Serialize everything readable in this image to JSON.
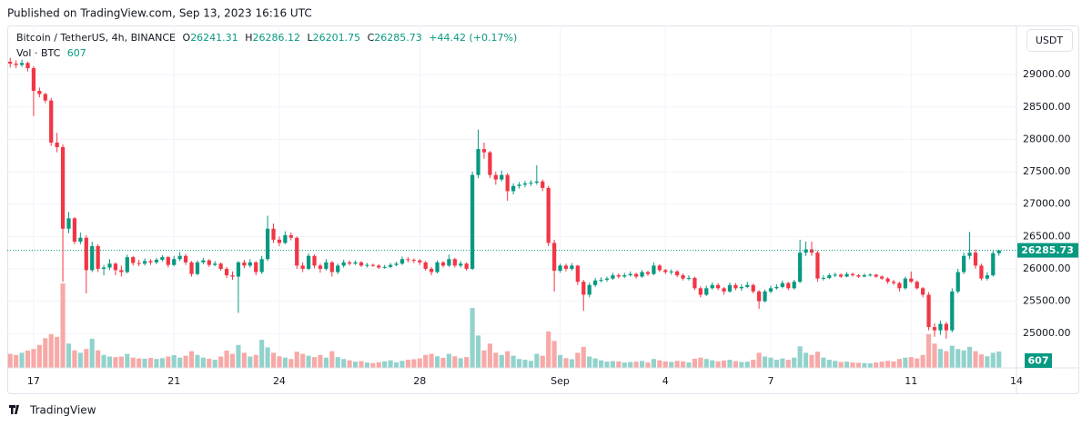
{
  "published": "Published on TradingView.com, Sep 13, 2023 16:16 UTC",
  "footer": "TradingView",
  "chart_data": {
    "type": "candlestick",
    "symbol": "Bitcoin / TetherUS, 4h, BINANCE",
    "ohlc_labels": [
      "O",
      "H",
      "L",
      "C"
    ],
    "change": "+44.42 (+0.17%)",
    "volume_label": "Vol · BTC",
    "currency": "USDT",
    "up_color": "#089981",
    "down_color": "#f23645",
    "volume_up_color": "#92d2cc",
    "volume_down_color": "#f7a9a7",
    "grid": true,
    "xlim": [
      -0.5,
      172
    ],
    "xticks": [
      {
        "value": 4,
        "label": "17"
      },
      {
        "value": 28,
        "label": "21"
      },
      {
        "value": 46,
        "label": "24"
      },
      {
        "value": 70,
        "label": "28"
      },
      {
        "value": 94,
        "label": "Sep"
      },
      {
        "value": 112,
        "label": "4"
      },
      {
        "value": 130,
        "label": "7"
      },
      {
        "value": 154,
        "label": "11"
      },
      {
        "value": 172,
        "label": "14"
      }
    ],
    "ylim": [
      24470,
      29760
    ],
    "yticks": [
      {
        "value": 25000,
        "label": "25000.00"
      },
      {
        "value": 25500,
        "label": "25500.00"
      },
      {
        "value": 26000,
        "label": "26000.00"
      },
      {
        "value": 26500,
        "label": "26500.00"
      },
      {
        "value": 27000,
        "label": "27000.00"
      },
      {
        "value": 27500,
        "label": "27500.00"
      },
      {
        "value": 28000,
        "label": "28000.00"
      },
      {
        "value": 28500,
        "label": "28500.00"
      },
      {
        "value": 29000,
        "label": "29000.00"
      }
    ],
    "y2lim": [
      0,
      12700
    ],
    "x": [
      0,
      1,
      2,
      3,
      4,
      5,
      6,
      7,
      8,
      9,
      10,
      11,
      12,
      13,
      14,
      15,
      16,
      17,
      18,
      19,
      20,
      21,
      22,
      23,
      24,
      25,
      26,
      27,
      28,
      29,
      30,
      31,
      32,
      33,
      34,
      35,
      36,
      37,
      38,
      39,
      40,
      41,
      42,
      43,
      44,
      45,
      46,
      47,
      48,
      49,
      50,
      51,
      52,
      53,
      54,
      55,
      56,
      57,
      58,
      59,
      60,
      61,
      62,
      63,
      64,
      65,
      66,
      67,
      68,
      69,
      70,
      71,
      72,
      73,
      74,
      75,
      76,
      77,
      78,
      79,
      80,
      81,
      82,
      83,
      84,
      85,
      86,
      87,
      88,
      89,
      90,
      91,
      92,
      93,
      94,
      95,
      96,
      97,
      98,
      99,
      100,
      101,
      102,
      103,
      104,
      105,
      106,
      107,
      108,
      109,
      110,
      111,
      112,
      113,
      114,
      115,
      116,
      117,
      118,
      119,
      120,
      121,
      122,
      123,
      124,
      125,
      126,
      127,
      128,
      129,
      130,
      131,
      132,
      133,
      134,
      135,
      136,
      137,
      138,
      139,
      140,
      141,
      142,
      143,
      144,
      145,
      146,
      147,
      148,
      149,
      150,
      151,
      152,
      153,
      154,
      155,
      156,
      157,
      158,
      159,
      160,
      161,
      162,
      163,
      164,
      165,
      166,
      167,
      168,
      169
    ],
    "ohlc": [
      [
        29200,
        29260,
        29110,
        29170
      ],
      [
        29170,
        29220,
        29100,
        29150
      ],
      [
        29150,
        29230,
        29120,
        29180
      ],
      [
        29180,
        29200,
        29050,
        29100
      ],
      [
        29100,
        29130,
        28360,
        28750
      ],
      [
        28750,
        28800,
        28650,
        28700
      ],
      [
        28700,
        28720,
        28560,
        28600
      ],
      [
        28600,
        28640,
        27900,
        27950
      ],
      [
        27950,
        28100,
        27800,
        27880
      ],
      [
        27880,
        27920,
        25800,
        26620
      ],
      [
        26620,
        26880,
        26550,
        26780
      ],
      [
        26780,
        26800,
        26380,
        26420
      ],
      [
        26420,
        26560,
        26380,
        26480
      ],
      [
        26480,
        26520,
        25620,
        25980
      ],
      [
        25980,
        26420,
        25950,
        26350
      ],
      [
        26350,
        26380,
        25950,
        26000
      ],
      [
        26000,
        26060,
        25900,
        26020
      ],
      [
        26020,
        26150,
        25980,
        26080
      ],
      [
        26080,
        26100,
        25900,
        25980
      ],
      [
        25980,
        26050,
        25880,
        25950
      ],
      [
        25950,
        26220,
        25930,
        26180
      ],
      [
        26180,
        26200,
        26050,
        26090
      ],
      [
        26090,
        26140,
        26040,
        26080
      ],
      [
        26080,
        26160,
        26050,
        26120
      ],
      [
        26120,
        26150,
        26060,
        26100
      ],
      [
        26100,
        26170,
        26070,
        26140
      ],
      [
        26140,
        26210,
        26110,
        26180
      ],
      [
        26180,
        26200,
        26020,
        26060
      ],
      [
        26060,
        26200,
        26040,
        26150
      ],
      [
        26150,
        26260,
        26120,
        26200
      ],
      [
        26200,
        26230,
        26060,
        26100
      ],
      [
        26100,
        26120,
        25880,
        25920
      ],
      [
        25920,
        26130,
        25900,
        26100
      ],
      [
        26100,
        26170,
        26070,
        26130
      ],
      [
        26130,
        26150,
        26030,
        26060
      ],
      [
        26060,
        26120,
        26040,
        26080
      ],
      [
        26080,
        26100,
        25970,
        26000
      ],
      [
        26000,
        26030,
        25860,
        25900
      ],
      [
        25900,
        25960,
        25830,
        25880
      ],
      [
        25880,
        26120,
        25320,
        26100
      ],
      [
        26100,
        26140,
        26010,
        26050
      ],
      [
        26050,
        26150,
        26020,
        26100
      ],
      [
        26100,
        26120,
        25900,
        25950
      ],
      [
        25950,
        26200,
        25920,
        26150
      ],
      [
        26150,
        26820,
        26120,
        26620
      ],
      [
        26620,
        26700,
        26400,
        26450
      ],
      [
        26450,
        26500,
        26350,
        26400
      ],
      [
        26400,
        26580,
        26380,
        26520
      ],
      [
        26520,
        26560,
        26440,
        26480
      ],
      [
        26480,
        26500,
        26000,
        26050
      ],
      [
        26050,
        26100,
        25950,
        26000
      ],
      [
        26000,
        26240,
        25980,
        26200
      ],
      [
        26200,
        26220,
        26010,
        26050
      ],
      [
        26050,
        26080,
        25940,
        26000
      ],
      [
        26000,
        26150,
        25970,
        26100
      ],
      [
        26100,
        26120,
        25880,
        25950
      ],
      [
        25950,
        26080,
        25920,
        26050
      ],
      [
        26050,
        26140,
        26020,
        26100
      ],
      [
        26100,
        26130,
        26050,
        26080
      ],
      [
        26080,
        26130,
        26060,
        26100
      ],
      [
        26100,
        26120,
        26030,
        26050
      ],
      [
        26050,
        26090,
        26020,
        26060
      ],
      [
        26060,
        26080,
        26030,
        26050
      ],
      [
        26050,
        26070,
        26000,
        26020
      ],
      [
        26020,
        26060,
        26000,
        26030
      ],
      [
        26030,
        26090,
        26010,
        26060
      ],
      [
        26060,
        26110,
        26040,
        26080
      ],
      [
        26080,
        26190,
        26060,
        26150
      ],
      [
        26150,
        26180,
        26100,
        26140
      ],
      [
        26140,
        26160,
        26090,
        26130
      ],
      [
        26130,
        26150,
        26060,
        26100
      ],
      [
        26100,
        26120,
        25970,
        26000
      ],
      [
        26000,
        26030,
        25900,
        25950
      ],
      [
        25950,
        26130,
        25930,
        26100
      ],
      [
        26100,
        26120,
        26020,
        26050
      ],
      [
        26050,
        26220,
        26030,
        26150
      ],
      [
        26150,
        26170,
        26020,
        26050
      ],
      [
        26050,
        26120,
        26020,
        26080
      ],
      [
        26080,
        26100,
        25970,
        26000
      ],
      [
        26000,
        27500,
        25980,
        27450
      ],
      [
        27450,
        28150,
        27400,
        27850
      ],
      [
        27850,
        27950,
        27700,
        27800
      ],
      [
        27800,
        27820,
        27400,
        27450
      ],
      [
        27450,
        27500,
        27300,
        27380
      ],
      [
        27380,
        27520,
        27350,
        27450
      ],
      [
        27450,
        27480,
        27050,
        27200
      ],
      [
        27200,
        27320,
        27150,
        27280
      ],
      [
        27280,
        27340,
        27240,
        27300
      ],
      [
        27300,
        27360,
        27260,
        27320
      ],
      [
        27320,
        27370,
        27280,
        27330
      ],
      [
        27330,
        27600,
        27300,
        27350
      ],
      [
        27350,
        27380,
        27200,
        27250
      ],
      [
        27250,
        27280,
        26350,
        26400
      ],
      [
        26400,
        26450,
        25650,
        25970
      ],
      [
        25970,
        26080,
        25940,
        26050
      ],
      [
        26050,
        26080,
        25960,
        26000
      ],
      [
        26000,
        26090,
        25970,
        26050
      ],
      [
        26050,
        26060,
        25750,
        25800
      ],
      [
        25800,
        25830,
        25350,
        25600
      ],
      [
        25600,
        25790,
        25560,
        25750
      ],
      [
        25750,
        25860,
        25720,
        25820
      ],
      [
        25820,
        25870,
        25790,
        25830
      ],
      [
        25830,
        25880,
        25800,
        25850
      ],
      [
        25850,
        25940,
        25830,
        25900
      ],
      [
        25900,
        25930,
        25850,
        25880
      ],
      [
        25880,
        25940,
        25860,
        25900
      ],
      [
        25900,
        25960,
        25880,
        25920
      ],
      [
        25920,
        25940,
        25850,
        25880
      ],
      [
        25880,
        25980,
        25860,
        25950
      ],
      [
        25950,
        25970,
        25890,
        25920
      ],
      [
        25920,
        26100,
        25900,
        26050
      ],
      [
        26050,
        26070,
        25950,
        25980
      ],
      [
        25980,
        26000,
        25920,
        25950
      ],
      [
        25950,
        25990,
        25910,
        25960
      ],
      [
        25960,
        25980,
        25870,
        25900
      ],
      [
        25900,
        25930,
        25820,
        25850
      ],
      [
        25850,
        25900,
        25820,
        25860
      ],
      [
        25860,
        25880,
        25670,
        25700
      ],
      [
        25700,
        25730,
        25560,
        25600
      ],
      [
        25600,
        25740,
        25580,
        25700
      ],
      [
        25700,
        25790,
        25680,
        25750
      ],
      [
        25750,
        25780,
        25670,
        25700
      ],
      [
        25700,
        25720,
        25600,
        25650
      ],
      [
        25650,
        25790,
        25630,
        25750
      ],
      [
        25750,
        25780,
        25670,
        25700
      ],
      [
        25700,
        25760,
        25660,
        25720
      ],
      [
        25720,
        25800,
        25700,
        25750
      ],
      [
        25750,
        25770,
        25620,
        25650
      ],
      [
        25650,
        25670,
        25380,
        25500
      ],
      [
        25500,
        25680,
        25480,
        25650
      ],
      [
        25650,
        25740,
        25620,
        25700
      ],
      [
        25700,
        25760,
        25680,
        25720
      ],
      [
        25720,
        25820,
        25700,
        25780
      ],
      [
        25780,
        25800,
        25670,
        25700
      ],
      [
        25700,
        25830,
        25680,
        25800
      ],
      [
        25800,
        26450,
        25780,
        26250
      ],
      [
        26250,
        26420,
        26200,
        26300
      ],
      [
        26300,
        26420,
        26200,
        26250
      ],
      [
        26250,
        26280,
        25800,
        25850
      ],
      [
        25850,
        25900,
        25820,
        25860
      ],
      [
        25860,
        25930,
        25840,
        25900
      ],
      [
        25900,
        25940,
        25870,
        25910
      ],
      [
        25910,
        25930,
        25860,
        25880
      ],
      [
        25880,
        25950,
        25870,
        25920
      ],
      [
        25920,
        25940,
        25880,
        25900
      ],
      [
        25900,
        25920,
        25860,
        25880
      ],
      [
        25880,
        25930,
        25870,
        25900
      ],
      [
        25900,
        25930,
        25880,
        25910
      ],
      [
        25910,
        25920,
        25860,
        25880
      ],
      [
        25880,
        25900,
        25830,
        25850
      ],
      [
        25850,
        25870,
        25770,
        25800
      ],
      [
        25800,
        25830,
        25750,
        25780
      ],
      [
        25780,
        25800,
        25650,
        25700
      ],
      [
        25700,
        25880,
        25680,
        25850
      ],
      [
        25850,
        25960,
        25780,
        25800
      ],
      [
        25800,
        25820,
        25680,
        25700
      ],
      [
        25700,
        25720,
        25560,
        25600
      ],
      [
        25600,
        25640,
        25050,
        25100
      ],
      [
        25100,
        25160,
        24950,
        25050
      ],
      [
        25050,
        25200,
        24980,
        25150
      ],
      [
        25150,
        25180,
        24920,
        25050
      ],
      [
        25050,
        25700,
        25020,
        25650
      ],
      [
        25650,
        26000,
        25620,
        25950
      ],
      [
        25950,
        26250,
        25920,
        26200
      ],
      [
        26200,
        26570,
        26150,
        26250
      ],
      [
        26250,
        26300,
        26000,
        26050
      ],
      [
        26050,
        26080,
        25820,
        25850
      ],
      [
        25850,
        25950,
        25820,
        25900
      ],
      [
        25900,
        26280,
        25880,
        26241.31
      ],
      [
        26241.31,
        26286.12,
        26201.75,
        26285.73
      ]
    ],
    "volume": [
      520,
      480,
      560,
      640,
      700,
      850,
      1100,
      1250,
      1150,
      3130,
      900,
      650,
      560,
      700,
      1080,
      650,
      480,
      420,
      400,
      420,
      520,
      380,
      350,
      340,
      370,
      330,
      360,
      420,
      470,
      380,
      450,
      620,
      480,
      380,
      340,
      300,
      420,
      640,
      520,
      850,
      560,
      420,
      480,
      1040,
      760,
      560,
      430,
      380,
      330,
      600,
      520,
      450,
      400,
      480,
      380,
      620,
      400,
      330,
      280,
      230,
      250,
      200,
      180,
      210,
      240,
      280,
      200,
      260,
      300,
      320,
      350,
      480,
      520,
      430,
      370,
      520,
      430,
      360,
      400,
      2220,
      1200,
      650,
      900,
      560,
      480,
      620,
      450,
      330,
      300,
      260,
      520,
      450,
      1350,
      1000,
      480,
      360,
      320,
      560,
      780,
      420,
      350,
      280,
      230,
      250,
      240,
      200,
      220,
      230,
      260,
      200,
      330,
      280,
      240,
      220,
      260,
      240,
      200,
      340,
      380,
      330,
      280,
      240,
      270,
      300,
      250,
      220,
      230,
      300,
      560,
      420,
      380,
      300,
      350,
      300,
      380,
      800,
      560,
      480,
      600,
      380,
      300,
      260,
      220,
      230,
      200,
      190,
      180,
      170,
      200,
      230,
      260,
      240,
      330,
      380,
      400,
      350,
      480,
      1250,
      900,
      700,
      620,
      820,
      700,
      650,
      780,
      620,
      500,
      430,
      560,
      607
    ]
  }
}
